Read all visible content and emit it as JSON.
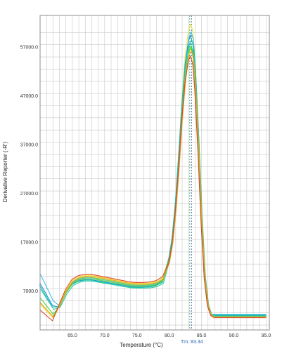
{
  "chart_data": {
    "type": "line",
    "title": "",
    "xlabel": "Temperature (°C)",
    "ylabel": "Derivative Reporter (-R')",
    "xlim": [
      60.0,
      95.5
    ],
    "ylim": [
      -1000,
      63500
    ],
    "x_ticks": [
      "65.0",
      "70.0",
      "75.0",
      "80.0",
      "85.0",
      "90.0",
      "95.0"
    ],
    "y_ticks": [
      "7000.0",
      "17000.0",
      "27000.0",
      "37000.0",
      "47000.0",
      "57000.0"
    ],
    "grid": true,
    "tm_label": "Tm: 83.34",
    "tm_value": 83.34,
    "curve_shape": {
      "x": [
        60,
        61,
        62,
        63,
        64,
        65,
        66,
        67,
        68,
        69,
        70,
        71,
        72,
        73,
        74,
        75,
        76,
        77,
        78,
        79,
        80,
        80.5,
        81,
        81.5,
        82,
        82.5,
        83,
        83.34,
        83.7,
        84,
        84.5,
        85,
        85.5,
        86,
        86.5,
        87,
        88,
        89,
        90,
        91,
        92,
        93,
        94,
        95
      ],
      "y": [
        0.1,
        0.06,
        0.04,
        0.08,
        0.14,
        0.18,
        0.195,
        0.2,
        0.2,
        0.195,
        0.19,
        0.185,
        0.18,
        0.175,
        0.17,
        0.168,
        0.168,
        0.17,
        0.175,
        0.19,
        0.23,
        0.3,
        0.42,
        0.58,
        0.76,
        0.9,
        0.98,
        1.0,
        0.97,
        0.88,
        0.65,
        0.38,
        0.17,
        0.07,
        0.035,
        0.025,
        0.022,
        0.02,
        0.02,
        0.02,
        0.019,
        0.018,
        0.018,
        0.018
      ]
    },
    "series": [
      {
        "color": "#e8e23a",
        "peak": 61800,
        "shift": 0.0,
        "low": 800,
        "plateau": 10200,
        "tail": 1600
      },
      {
        "color": "#40b8e8",
        "peak": 60200,
        "shift": 0.05,
        "low": 3600,
        "plateau": 9700,
        "tail": 2200
      },
      {
        "color": "#1a8fd6",
        "peak": 59400,
        "shift": -0.05,
        "low": 2800,
        "plateau": 9300,
        "tail": 2000
      },
      {
        "color": "#26c79a",
        "peak": 58600,
        "shift": 0.1,
        "low": 2200,
        "plateau": 9000,
        "tail": 1900
      },
      {
        "color": "#18c0b0",
        "peak": 58000,
        "shift": -0.1,
        "low": 2600,
        "plateau": 9200,
        "tail": 2100
      },
      {
        "color": "#4ccc2e",
        "peak": 57300,
        "shift": 0.02,
        "low": 1400,
        "plateau": 9500,
        "tail": 1700
      },
      {
        "color": "#86d32e",
        "peak": 56800,
        "shift": -0.02,
        "low": 1000,
        "plateau": 9800,
        "tail": 1700
      },
      {
        "color": "#f0a020",
        "peak": 56300,
        "shift": 0.07,
        "low": 900,
        "plateau": 10000,
        "tail": 1600
      },
      {
        "color": "#e2402a",
        "peak": 55200,
        "shift": -0.07,
        "low": 300,
        "plateau": 10400,
        "tail": 1500
      }
    ],
    "colors": {
      "grid": "#c8c8c8",
      "frame": "#8c8c8c",
      "tm_line_blue": "#2a62b8",
      "tm_line_green": "#3c9a3c"
    }
  }
}
